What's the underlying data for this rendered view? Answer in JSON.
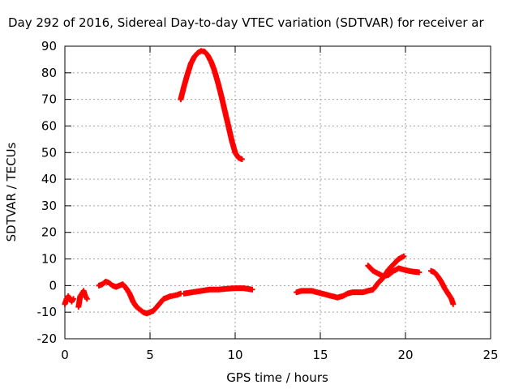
{
  "chart_data": {
    "type": "scatter",
    "title": "Day 292 of 2016, Sidereal Day-to-day VTEC variation (SDTVAR) for receiver ar",
    "xlabel": "GPS time / hours",
    "ylabel": "SDTVAR / TECUs",
    "xlim": [
      0,
      25
    ],
    "ylim": [
      -20,
      90
    ],
    "xticks": [
      0,
      5,
      10,
      15,
      20,
      25
    ],
    "yticks": [
      -20,
      -10,
      0,
      10,
      20,
      30,
      40,
      50,
      60,
      70,
      80,
      90
    ],
    "grid": true,
    "marker": "+",
    "color": "#ff0000",
    "series": [
      {
        "name": "SDTVAR",
        "segments": [
          {
            "x": [
              0.0,
              0.1,
              0.2,
              0.3,
              0.4,
              0.5
            ],
            "y": [
              -7,
              -5,
              -4,
              -5,
              -6,
              -5
            ]
          },
          {
            "x": [
              0.8,
              0.9,
              1.0,
              1.1,
              1.2,
              1.3
            ],
            "y": [
              -8,
              -4,
              -3,
              -2,
              -4,
              -5
            ]
          },
          {
            "x": [
              2.0,
              2.2,
              2.4,
              2.6,
              2.8,
              3.0,
              3.2,
              3.4,
              3.6,
              3.8,
              4.0,
              4.2,
              4.4,
              4.6,
              4.8,
              5.0,
              5.2,
              5.4,
              5.6,
              5.8,
              6.0,
              6.2,
              6.4,
              6.6,
              6.8
            ],
            "y": [
              0,
              0.5,
              1.5,
              1,
              0,
              -0.5,
              0,
              0.5,
              -1,
              -3,
              -6,
              -8,
              -9,
              -10,
              -10.5,
              -10,
              -9.5,
              -8,
              -6.5,
              -5,
              -4.5,
              -4,
              -3.8,
              -3.5,
              -3
            ]
          },
          {
            "x": [
              6.8,
              7.0,
              7.2,
              7.4,
              7.6,
              7.8,
              8.0,
              8.2,
              8.4,
              8.6,
              8.8,
              9.0,
              9.2,
              9.4,
              9.6,
              9.8,
              10.0,
              10.2,
              10.4
            ],
            "y": [
              70,
              75,
              79.5,
              83.5,
              86,
              87.5,
              88.2,
              88,
              86.5,
              84,
              80.5,
              76,
              71,
              65.5,
              60,
              54.5,
              50,
              48,
              47.5
            ]
          },
          {
            "x": [
              7.0,
              7.5,
              8.0,
              8.5,
              9.0,
              9.5,
              10.0,
              10.5,
              11.0
            ],
            "y": [
              -3,
              -2.5,
              -2,
              -1.5,
              -1.5,
              -1.2,
              -1,
              -1,
              -1.5
            ]
          },
          {
            "x": [
              13.6,
              13.9,
              14.2,
              14.5,
              14.8,
              15.1,
              15.4,
              15.7,
              16.0,
              16.3,
              16.6,
              16.9,
              17.2,
              17.5,
              17.8,
              18.1,
              18.4,
              18.7,
              19.0,
              19.3,
              19.6,
              19.9
            ],
            "y": [
              -2.5,
              -2,
              -2,
              -2,
              -2.5,
              -3,
              -3.5,
              -4,
              -4.5,
              -4,
              -3,
              -2.5,
              -2.5,
              -2.5,
              -2,
              -1.5,
              1,
              3,
              6,
              8,
              10,
              11
            ]
          },
          {
            "x": [
              17.8,
              18.1,
              18.4,
              18.7,
              19.0,
              19.3,
              19.6,
              19.9,
              20.2,
              20.5,
              20.8
            ],
            "y": [
              7.5,
              5.5,
              4.5,
              3.5,
              4,
              5.5,
              6.5,
              6,
              5.5,
              5.2,
              5
            ]
          },
          {
            "x": [
              21.5,
              21.7,
              21.9,
              22.1,
              22.3,
              22.5,
              22.7,
              22.8
            ],
            "y": [
              5.5,
              5,
              3.5,
              1.5,
              -1,
              -3,
              -5,
              -7
            ]
          }
        ]
      }
    ]
  }
}
